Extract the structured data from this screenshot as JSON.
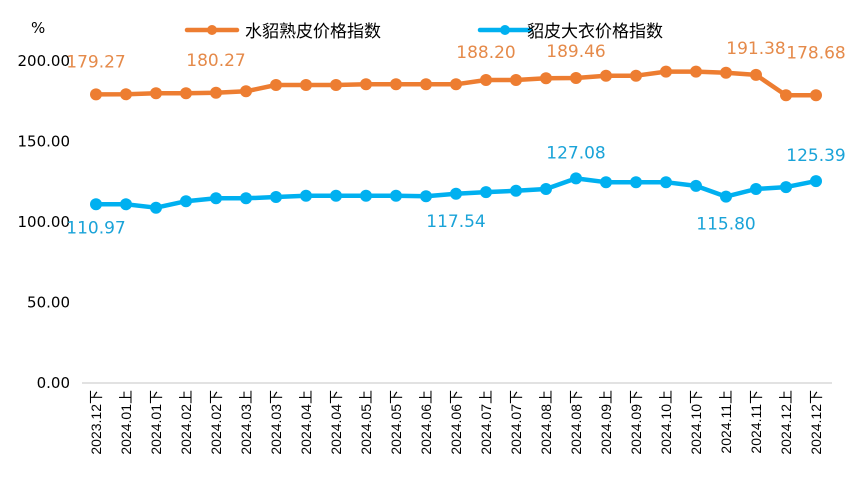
{
  "chart_data": {
    "type": "line",
    "title": "",
    "ylabel": "%",
    "xlabel": "",
    "ylim": [
      0,
      200
    ],
    "yticks": [
      "0.00",
      "50.00",
      "100.00",
      "150.00",
      "200.00"
    ],
    "ytick_values": [
      0,
      50,
      100,
      150,
      200
    ],
    "grid": false,
    "legend_position": "top",
    "categories": [
      "2023.12下",
      "2024.01上",
      "2024.01下",
      "2024.02上",
      "2024.02下",
      "2024.03上",
      "2024.03下",
      "2024.04上",
      "2024.04下",
      "2024.05上",
      "2024.05下",
      "2024.06上",
      "2024.06下",
      "2024.07上",
      "2024.07下",
      "2024.08上",
      "2024.08下",
      "2024.09上",
      "2024.09下",
      "2024.10上",
      "2024.10下",
      "2024.11上",
      "2024.11下",
      "2024.12上",
      "2024.12下"
    ],
    "series": [
      {
        "name": "水貂熟皮价格指数",
        "color": "#ED7D31",
        "values": [
          179.27,
          179.3,
          180.0,
          180.0,
          180.27,
          181.2,
          185.1,
          185.1,
          185.1,
          185.5,
          185.5,
          185.5,
          185.5,
          188.2,
          188.2,
          189.3,
          189.46,
          190.9,
          190.9,
          193.4,
          193.4,
          192.7,
          191.38,
          178.7,
          178.68
        ],
        "labels": [
          {
            "index": 0,
            "text": "179.27"
          },
          {
            "index": 4,
            "text": "180.27"
          },
          {
            "index": 13,
            "text": "188.20"
          },
          {
            "index": 16,
            "text": "189.46"
          },
          {
            "index": 22,
            "text": "191.38"
          },
          {
            "index": 24,
            "text": "178.68"
          }
        ]
      },
      {
        "name": "貂皮大衣价格指数",
        "color": "#00B0F0",
        "values": [
          110.97,
          111.0,
          108.9,
          112.9,
          114.7,
          114.7,
          115.5,
          116.3,
          116.3,
          116.3,
          116.3,
          116.0,
          117.54,
          118.6,
          119.4,
          120.5,
          127.08,
          124.7,
          124.7,
          124.7,
          122.4,
          115.8,
          120.5,
          121.7,
          125.39
        ],
        "labels": [
          {
            "index": 0,
            "text": "110.97"
          },
          {
            "index": 12,
            "text": "117.54"
          },
          {
            "index": 16,
            "text": "127.08"
          },
          {
            "index": 21,
            "text": "115.80"
          },
          {
            "index": 24,
            "text": "125.39"
          }
        ]
      }
    ]
  }
}
